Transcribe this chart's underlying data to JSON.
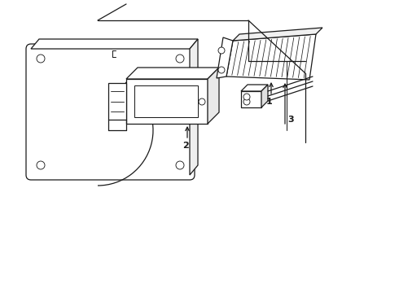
{
  "background_color": "#ffffff",
  "line_color": "#1a1a1a",
  "line_width": 0.9,
  "fig_width": 4.9,
  "fig_height": 3.6,
  "dpi": 100,
  "body_lines": [
    [
      150,
      340,
      310,
      340
    ],
    [
      310,
      340,
      380,
      275
    ],
    [
      380,
      275,
      380,
      175
    ],
    [
      310,
      340,
      310,
      285
    ],
    [
      310,
      285,
      380,
      285
    ]
  ],
  "wire_line": [
    [
      350,
      275
    ],
    [
      350,
      195
    ]
  ],
  "label1_text": "1",
  "label2_text": "2",
  "label3_text": "3"
}
